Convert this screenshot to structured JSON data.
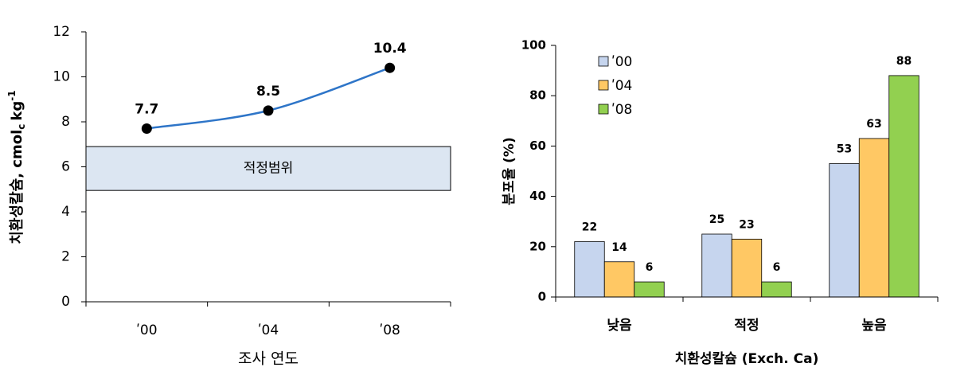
{
  "chart_data": [
    {
      "type": "line",
      "y_label": "치환성칼슘, cmol",
      "y_label_sub": "c",
      "y_label_unit": "kg",
      "y_label_sup": "-1",
      "x_label": "조사 연도",
      "categories": [
        "ʹ00",
        "ʹ04",
        "ʹ08"
      ],
      "values": [
        7.7,
        8.5,
        10.4
      ],
      "color": "#2e75c8",
      "marker_color": "#000000",
      "ylim": [
        0,
        12
      ],
      "yticks": [
        0,
        2,
        4,
        6,
        8,
        10,
        12
      ],
      "band": {
        "label": "적정범위",
        "range": [
          4.95,
          6.9
        ],
        "color": "#dce6f2"
      }
    },
    {
      "type": "bar",
      "y_label": "분포율 (%)",
      "x_label": "치환성칼슘 (Exch. Ca)",
      "categories": [
        "낮음",
        "적정",
        "높음"
      ],
      "series": [
        {
          "name": "ʹ00",
          "color": "#c6d5ee",
          "values": [
            22,
            25,
            53
          ]
        },
        {
          "name": "ʹ04",
          "color": "#ffc864",
          "values": [
            14,
            23,
            63
          ]
        },
        {
          "name": "ʹ08",
          "color": "#92d050",
          "values": [
            6,
            6,
            88
          ]
        }
      ],
      "ylim": [
        0,
        100
      ],
      "yticks": [
        0,
        20,
        40,
        60,
        80,
        100
      ],
      "legend": "upper-left"
    }
  ]
}
